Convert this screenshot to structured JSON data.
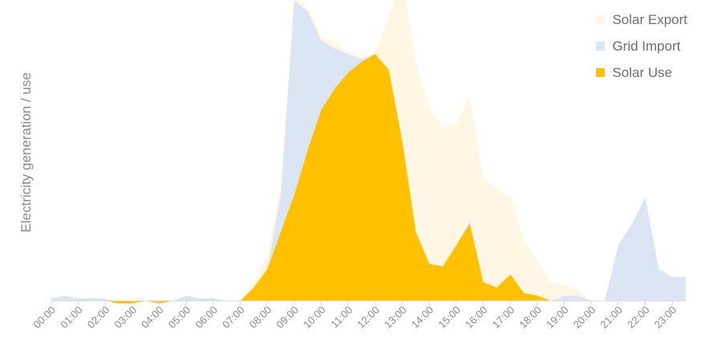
{
  "chart_data": {
    "type": "area",
    "title": "",
    "xlabel": "",
    "ylabel": "Electricity generation / use",
    "legend_position": "top-right",
    "x_ticks": [
      "00:00",
      "01:00",
      "02:00",
      "03:00",
      "04:00",
      "05:00",
      "06:00",
      "07:00",
      "08:00",
      "09:00",
      "10:00",
      "11:00",
      "12:00",
      "13:00",
      "14:00",
      "15:00",
      "16:00",
      "17:00",
      "18:00",
      "19:00",
      "20:00",
      "21:00",
      "22:00",
      "23:00"
    ],
    "x": [
      0,
      0.5,
      1,
      1.5,
      2,
      2.5,
      3,
      3.5,
      4,
      4.5,
      5,
      5.5,
      6,
      6.5,
      7,
      7.5,
      8,
      8.5,
      9,
      9.5,
      10,
      10.5,
      11,
      11.5,
      12,
      12.5,
      13,
      13.5,
      14,
      14.5,
      15,
      15.5,
      16,
      16.5,
      17,
      17.5,
      18,
      18.5,
      19,
      19.5,
      20,
      20.5,
      21,
      21.5,
      22,
      22.5,
      23,
      23.5
    ],
    "ylim": [
      0,
      100
    ],
    "series": [
      {
        "name": "Solar Export",
        "color": "#fff7e3",
        "values": [
          0,
          0,
          0,
          0,
          0,
          0,
          0,
          0,
          0,
          0,
          0,
          0,
          0,
          0,
          0,
          2,
          5,
          4,
          2,
          1,
          2,
          2,
          1,
          1,
          1,
          20,
          62,
          63,
          59,
          52,
          46,
          47,
          39,
          37,
          29,
          20,
          13,
          7,
          4,
          2,
          0,
          0,
          0,
          0,
          0,
          0,
          0,
          0
        ]
      },
      {
        "name": "Grid Import",
        "color": "#dce5f4",
        "values": [
          1,
          2,
          1,
          1,
          1,
          0,
          0,
          0,
          0,
          0,
          2,
          1,
          1,
          0,
          0,
          0,
          0,
          14,
          73,
          52,
          26,
          15,
          7,
          1,
          0,
          0,
          0,
          0,
          0,
          0,
          0,
          1,
          0,
          0,
          0,
          0,
          0,
          0,
          2,
          2,
          0,
          0,
          21,
          29,
          39,
          12,
          9,
          9
        ]
      },
      {
        "name": "Solar Use",
        "color": "#ffc000",
        "values": [
          0,
          0,
          0,
          0,
          0,
          -1,
          -1,
          0,
          -1,
          0,
          0,
          0,
          0,
          0,
          0,
          5,
          12,
          26,
          40,
          57,
          72,
          80,
          86,
          90,
          93,
          87,
          60,
          26,
          14,
          13,
          21,
          29,
          7,
          5,
          10,
          3,
          2,
          0,
          0,
          0,
          0,
          0,
          0,
          0,
          0,
          0,
          0,
          0
        ]
      }
    ]
  }
}
